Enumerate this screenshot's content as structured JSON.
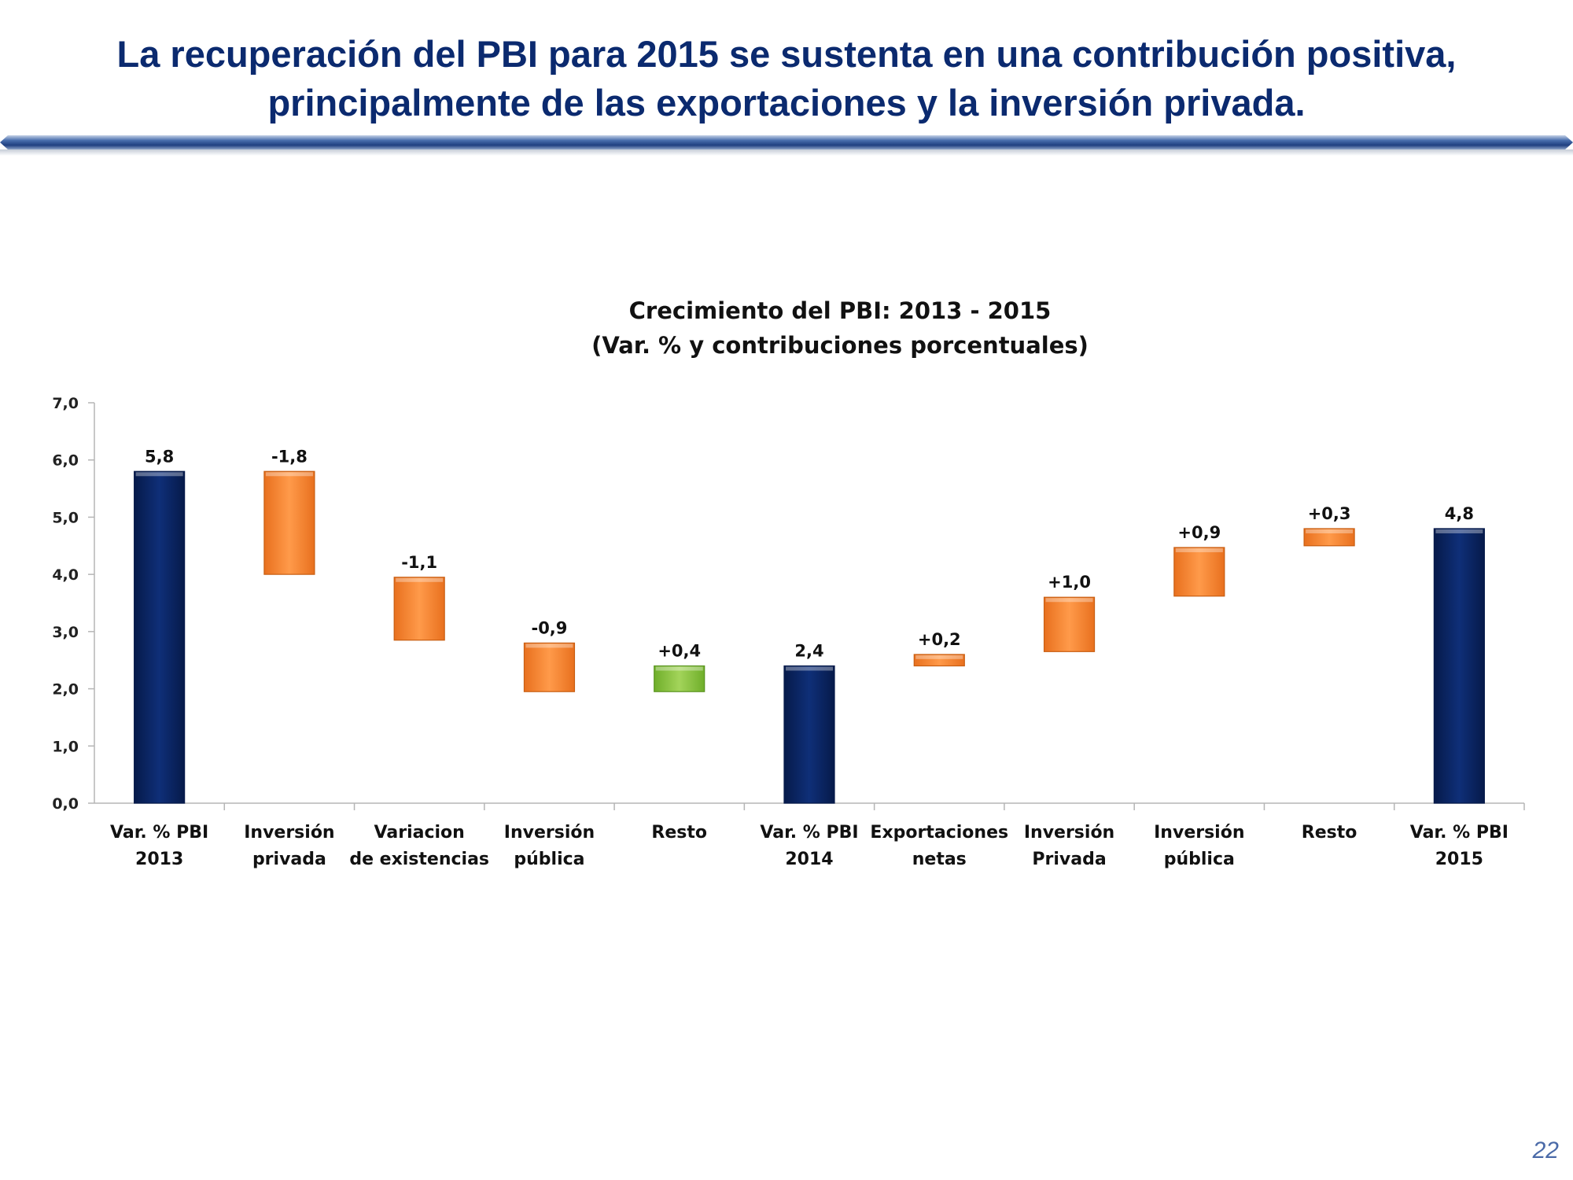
{
  "slide": {
    "title_line1": "La recuperación del PBI para 2015 se sustenta en una contribución positiva,",
    "title_line2": "principalmente de las exportaciones y la inversión privada.",
    "page_number": "22"
  },
  "colors": {
    "total": "#0b2462",
    "negative": "#f58a3a",
    "positive_orange": "#f58a3a",
    "positive_green": "#8dc63f",
    "title": "#0b2a6f"
  },
  "chart_data": {
    "type": "waterfall",
    "title": "Crecimiento del PBI: 2013 - 2015",
    "subtitle": "(Var. % y contribuciones porcentuales)",
    "xlabel": "",
    "ylabel": "",
    "ylim": [
      0,
      7
    ],
    "yticks": [
      0,
      1,
      2,
      3,
      4,
      5,
      6,
      7
    ],
    "ytick_labels": [
      "0,0",
      "1,0",
      "2,0",
      "3,0",
      "4,0",
      "5,0",
      "6,0",
      "7,0"
    ],
    "grid": false,
    "categories": [
      [
        "Var. % PBI",
        "2013"
      ],
      [
        "Inversión",
        "privada"
      ],
      [
        "Variacion",
        "de existencias"
      ],
      [
        "Inversión",
        "pública"
      ],
      [
        "Resto",
        ""
      ],
      [
        "Var. % PBI",
        "2014"
      ],
      [
        "Exportaciones",
        "netas"
      ],
      [
        "Inversión",
        "Privada"
      ],
      [
        "Inversión",
        "pública"
      ],
      [
        "Resto",
        ""
      ],
      [
        "Var. % PBI",
        "2015"
      ]
    ],
    "bars": [
      {
        "kind": "total",
        "low": 0.0,
        "high": 5.8,
        "label": "5,8"
      },
      {
        "kind": "negative",
        "low": 4.0,
        "high": 5.8,
        "label": "-1,8"
      },
      {
        "kind": "negative",
        "low": 2.85,
        "high": 3.95,
        "label": "-1,1"
      },
      {
        "kind": "negative",
        "low": 1.95,
        "high": 2.8,
        "label": "-0,9"
      },
      {
        "kind": "positive_green",
        "low": 1.95,
        "high": 2.4,
        "label": "+0,4"
      },
      {
        "kind": "total",
        "low": 0.0,
        "high": 2.4,
        "label": "2,4"
      },
      {
        "kind": "positive_orange",
        "low": 2.4,
        "high": 2.6,
        "label": "+0,2"
      },
      {
        "kind": "positive_orange",
        "low": 2.65,
        "high": 3.6,
        "label": "+1,0"
      },
      {
        "kind": "positive_orange",
        "low": 3.62,
        "high": 4.47,
        "label": "+0,9"
      },
      {
        "kind": "positive_orange",
        "low": 4.5,
        "high": 4.8,
        "label": "+0,3"
      },
      {
        "kind": "total",
        "low": 0.0,
        "high": 4.8,
        "label": "4,8"
      }
    ]
  }
}
